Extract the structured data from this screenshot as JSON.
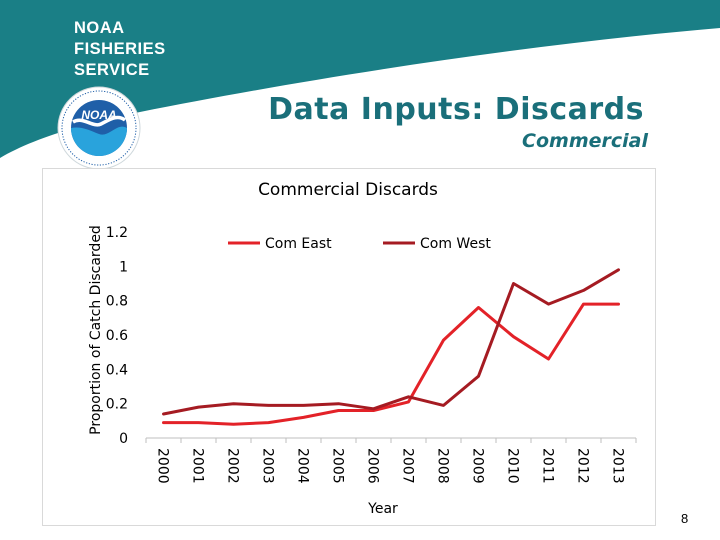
{
  "brand": {
    "line1": "NOAA",
    "line2": "FISHERIES",
    "line3": "SERVICE",
    "logo_text": "NOAA"
  },
  "slide": {
    "title": "Data Inputs: Discards",
    "subtitle": "Commercial",
    "page_number": "8"
  },
  "colors": {
    "teal": "#1a7f86",
    "title": "#1a6f7a",
    "com_east": "#e32228",
    "com_west": "#a51b22"
  },
  "chart_data": {
    "type": "line",
    "title": "Commercial Discards",
    "xlabel": "Year",
    "ylabel": "Proportion of Catch Discarded",
    "categories": [
      "2000",
      "2001",
      "2002",
      "2003",
      "2004",
      "2005",
      "2006",
      "2007",
      "2008",
      "2009",
      "2010",
      "2011",
      "2012",
      "2013"
    ],
    "ylim": [
      0,
      1.2
    ],
    "yticks": [
      "0",
      "0.2",
      "0.4",
      "0.6",
      "0.8",
      "1",
      "1.2"
    ],
    "legend_position": "top",
    "series": [
      {
        "name": "Com East",
        "color": "#e32228",
        "values": [
          0.09,
          0.09,
          0.08,
          0.09,
          0.12,
          0.16,
          0.16,
          0.21,
          0.57,
          0.76,
          0.59,
          0.46,
          0.78,
          0.78
        ]
      },
      {
        "name": "Com West",
        "color": "#a51b22",
        "values": [
          0.14,
          0.18,
          0.2,
          0.19,
          0.19,
          0.2,
          0.17,
          0.24,
          0.19,
          0.36,
          0.9,
          0.78,
          0.86,
          0.98
        ]
      }
    ]
  }
}
